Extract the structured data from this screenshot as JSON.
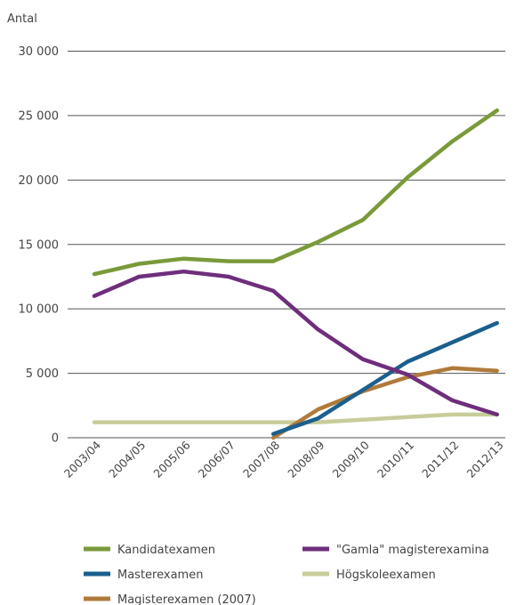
{
  "chart_data": {
    "type": "line",
    "ylabel": "Antal",
    "ylim": [
      0,
      30000
    ],
    "ytick_values": [
      0,
      5000,
      10000,
      15000,
      20000,
      25000,
      30000
    ],
    "ytick_labels": [
      "0",
      "5 000",
      "10 000",
      "15 000",
      "20 000",
      "25 000",
      "30 000"
    ],
    "categories": [
      "2003/04",
      "2004/05",
      "2005/06",
      "2006/07",
      "2007/08",
      "2008/09",
      "2009/10",
      "2010/11",
      "2011/12",
      "2012/13"
    ],
    "grid": "horizontal",
    "legend_placement": "bottom",
    "series": [
      {
        "name": "Kandidatexamen",
        "color": "#7a9a3a",
        "values": [
          12700,
          13500,
          13900,
          13700,
          13700,
          15200,
          16900,
          20200,
          23000,
          25400
        ]
      },
      {
        "name": "\"Gamla\" magisterexamina",
        "color": "#6e2e7c",
        "values": [
          11000,
          12500,
          12900,
          12500,
          11400,
          8400,
          6100,
          4900,
          2900,
          1800
        ]
      },
      {
        "name": "Masterexamen",
        "color": "#1a5f8e",
        "values": [
          null,
          null,
          null,
          null,
          300,
          1500,
          3700,
          5900,
          7400,
          8900
        ]
      },
      {
        "name": "Högskoleexamen",
        "color": "#c8cc9a",
        "values": [
          1200,
          1200,
          1200,
          1200,
          1200,
          1200,
          1400,
          1600,
          1800,
          1800
        ]
      },
      {
        "name": "Magisterexamen (2007)",
        "color": "#b07a3a",
        "values": [
          null,
          null,
          null,
          null,
          0,
          2200,
          3600,
          4700,
          5400,
          5200
        ]
      }
    ]
  }
}
